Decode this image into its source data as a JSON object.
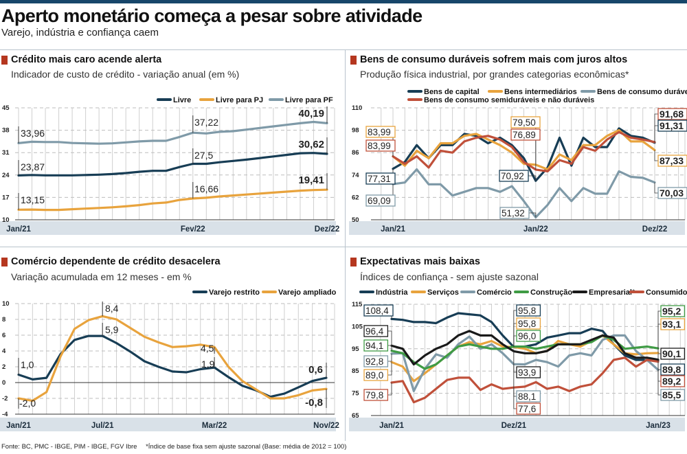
{
  "header": {
    "title": "Aperto monetário começa a pesar sobre atividade",
    "subtitle": "Varejo, indústria e confiança caem"
  },
  "footer": {
    "sources": "Fonte: BC, PMC - IBGE, PIM - IBGE, FGV Ibre",
    "note": "*Índice de base fixa sem ajuste sazonal (Base: média de 2012 = 100)"
  },
  "colors": {
    "navy": "#173d55",
    "orange": "#e8a33d",
    "gray": "#7f9aa8",
    "red": "#c0503a",
    "green": "#3f9b44",
    "black": "#1a1a1a",
    "accent": "#b5371f",
    "axis_band": "#d9e1e8"
  },
  "chart_data": [
    {
      "type": "line",
      "title": "Crédito mais caro acende alerta",
      "subtitle": "Indicador de custo de crédito - variação anual (em %)",
      "x_tick_labels": [
        {
          "index": 0,
          "label": "Jan/21"
        },
        {
          "index": 13,
          "label": "Fev/22"
        },
        {
          "index": 23,
          "label": "Dez/22"
        }
      ],
      "ylim": [
        10,
        45
      ],
      "y_ticks": [
        10,
        17,
        24,
        31,
        38,
        45
      ],
      "grid": true,
      "legend": "top-right",
      "series": [
        {
          "name": "Livre",
          "color": "#173d55",
          "values": [
            23.87,
            24.0,
            23.9,
            23.9,
            23.9,
            24.0,
            24.1,
            24.3,
            24.6,
            25.0,
            25.3,
            25.3,
            26.5,
            27.5,
            27.5,
            28.0,
            28.4,
            28.8,
            29.3,
            29.8,
            30.3,
            30.8,
            30.9,
            30.62
          ]
        },
        {
          "name": "Livre para PJ",
          "color": "#e8a33d",
          "values": [
            13.15,
            13.2,
            13.1,
            13.1,
            13.3,
            13.5,
            13.7,
            13.9,
            14.2,
            14.6,
            15.1,
            15.4,
            16.2,
            16.66,
            16.9,
            17.3,
            17.6,
            17.9,
            18.2,
            18.5,
            18.8,
            19.1,
            19.3,
            19.41
          ]
        },
        {
          "name": "Livre para PF",
          "color": "#7f9aa8",
          "values": [
            33.96,
            34.4,
            34.3,
            34.3,
            34.0,
            33.9,
            33.8,
            33.9,
            34.2,
            34.5,
            34.7,
            34.7,
            35.9,
            37.22,
            37.0,
            37.5,
            37.7,
            38.2,
            38.7,
            39.2,
            39.7,
            40.2,
            40.6,
            40.19
          ]
        }
      ],
      "annotations": [
        {
          "text": "33,96",
          "series": 2,
          "index": 0
        },
        {
          "text": "23,87",
          "series": 0,
          "index": 0
        },
        {
          "text": "13,15",
          "series": 1,
          "index": 0
        },
        {
          "text": "37,22",
          "series": 2,
          "index": 13
        },
        {
          "text": "27,5",
          "series": 0,
          "index": 13
        },
        {
          "text": "16,66",
          "series": 1,
          "index": 13
        },
        {
          "text": "40,19",
          "series": 2,
          "index": 23
        },
        {
          "text": "30,62",
          "series": 0,
          "index": 23
        },
        {
          "text": "19,41",
          "series": 1,
          "index": 23
        }
      ]
    },
    {
      "type": "line",
      "title": "Bens de consumo duráveis sofrem mais com juros altos",
      "subtitle": "Produção física industrial, por grandes categorias econômicas*",
      "x_tick_labels": [
        {
          "index": 0,
          "label": "Jan/21"
        },
        {
          "index": 12,
          "label": "Jan/22"
        },
        {
          "index": 22,
          "label": "Dez/22"
        }
      ],
      "ylim": [
        50,
        110
      ],
      "y_ticks": [
        50,
        62,
        74,
        86,
        98,
        110
      ],
      "grid": true,
      "legend": "top",
      "series": [
        {
          "name": "Bens de capital",
          "color": "#173d55",
          "values": [
            77.31,
            81,
            90,
            83,
            90,
            90,
            96,
            95,
            91,
            94,
            90,
            83,
            70.92,
            78,
            94,
            79,
            94,
            89,
            89,
            99,
            95,
            94,
            91.31
          ]
        },
        {
          "name": "Bens intermediários",
          "color": "#e8a33d",
          "values": [
            83.99,
            79,
            87,
            83,
            91,
            91,
            95,
            96,
            93,
            90,
            86,
            80,
            79.5,
            77,
            85,
            82,
            90,
            90,
            95,
            98,
            92,
            92,
            87.33
          ]
        },
        {
          "name": "Bens de consumo duráveis",
          "color": "#7f9aa8",
          "values": [
            69.09,
            70,
            77,
            69,
            69,
            63,
            65,
            67,
            67,
            65,
            68,
            60,
            51.32,
            58,
            67,
            60,
            67,
            64,
            64,
            76,
            73,
            72.5,
            70.03
          ]
        },
        {
          "name": "Bens de consumo semiduráveis e não duráveis",
          "color": "#c0503a",
          "values": [
            83.99,
            80,
            84,
            78,
            87,
            86,
            92,
            94,
            95,
            93,
            89,
            81,
            76.89,
            76,
            82,
            80,
            89,
            87,
            93,
            97,
            94,
            93,
            91.68
          ]
        }
      ],
      "annotations": [
        {
          "text": "83,99",
          "series": 1,
          "index": 0
        },
        {
          "text": "83,99",
          "series": 3,
          "index": 0
        },
        {
          "text": "77,31",
          "series": 0,
          "index": 0
        },
        {
          "text": "69,09",
          "series": 2,
          "index": 0
        },
        {
          "text": "79,50",
          "series": 1,
          "index": 12
        },
        {
          "text": "76,89",
          "series": 3,
          "index": 12
        },
        {
          "text": "70,92",
          "series": 0,
          "index": 12
        },
        {
          "text": "51,32",
          "series": 2,
          "index": 12
        },
        {
          "text": "91,68",
          "series": 3,
          "index": 22
        },
        {
          "text": "91,31",
          "series": 0,
          "index": 22
        },
        {
          "text": "87,33",
          "series": 1,
          "index": 22
        },
        {
          "text": "70,03",
          "series": 2,
          "index": 22
        }
      ]
    },
    {
      "type": "line",
      "title": "Comércio dependente de crédito desacelera",
      "subtitle": "Variação acumulada em 12 meses - em %",
      "x_tick_labels": [
        {
          "index": 0,
          "label": "Jan/21"
        },
        {
          "index": 6,
          "label": "Jul/21"
        },
        {
          "index": 14,
          "label": "Mar/22"
        },
        {
          "index": 22,
          "label": "Nov/22"
        }
      ],
      "ylim": [
        -4,
        10
      ],
      "y_ticks": [
        -4,
        -2,
        0,
        2,
        4,
        6,
        8,
        10
      ],
      "grid": true,
      "legend": "top-right",
      "series": [
        {
          "name": "Varejo restrito",
          "color": "#173d55",
          "values": [
            1.0,
            0.4,
            0.6,
            3.6,
            5.4,
            5.9,
            5.9,
            5.0,
            3.9,
            2.7,
            2.0,
            1.4,
            1.3,
            1.7,
            1.9,
            0.7,
            -0.4,
            -1.0,
            -1.8,
            -1.4,
            -0.6,
            0.2,
            0.6
          ]
        },
        {
          "name": "Varejo ampliado",
          "color": "#e8a33d",
          "values": [
            -2.0,
            -2.3,
            -1.2,
            3.3,
            6.8,
            7.9,
            8.4,
            8.0,
            6.9,
            5.8,
            5.1,
            4.5,
            4.6,
            4.8,
            4.5,
            2.0,
            0.2,
            -0.9,
            -2.0,
            -2.0,
            -1.6,
            -1.0,
            -0.8
          ]
        }
      ],
      "annotations": [
        {
          "text": "1,0",
          "series": 0,
          "index": 0
        },
        {
          "text": "-2,0",
          "series": 1,
          "index": 0
        },
        {
          "text": "8,4",
          "series": 1,
          "index": 6
        },
        {
          "text": "5,9",
          "series": 0,
          "index": 6
        },
        {
          "text": "4,5",
          "series": 1,
          "index": 14
        },
        {
          "text": "1,9",
          "series": 0,
          "index": 14
        },
        {
          "text": "0,6",
          "series": 0,
          "index": 22
        },
        {
          "text": "-0,8",
          "series": 1,
          "index": 22
        }
      ]
    },
    {
      "type": "line",
      "title": "Expectativas mais baixas",
      "subtitle": "Índices de confiança - sem ajuste sazonal",
      "x_tick_labels": [
        {
          "index": 0,
          "label": "Jan/21"
        },
        {
          "index": 11,
          "label": "Dez/21"
        },
        {
          "index": 24,
          "label": "Jan/23"
        }
      ],
      "ylim": [
        65,
        115
      ],
      "y_ticks": [
        65,
        75,
        85,
        95,
        105,
        115
      ],
      "grid": true,
      "legend": "top",
      "series": [
        {
          "name": "Indústria",
          "color": "#173d55",
          "values": [
            108.4,
            108,
            107,
            107,
            106.5,
            109,
            111,
            110.5,
            110,
            107,
            101,
            95.8,
            96,
            97,
            100,
            101,
            102,
            102,
            104,
            103,
            97,
            92,
            90,
            90,
            89.8
          ]
        },
        {
          "name": "Serviços",
          "color": "#e8a33d",
          "values": [
            89.0,
            87,
            80.5,
            84,
            88,
            92,
            96,
            98,
            97,
            98.5,
            96,
            95.8,
            95,
            93,
            94,
            98.5,
            97,
            96,
            98.5,
            101,
            97,
            93,
            92.5,
            93,
            93.1
          ]
        },
        {
          "name": "Comércio",
          "color": "#7f9aa8",
          "values": [
            92.8,
            93,
            76,
            86,
            92.5,
            91,
            97,
            100.5,
            95,
            97,
            93,
            88.1,
            88,
            90,
            89,
            87,
            92,
            93,
            92,
            99,
            101,
            101,
            94,
            90,
            85.5
          ]
        },
        {
          "name": "Construção",
          "color": "#3f9b44",
          "values": [
            94.1,
            93,
            89,
            86,
            88,
            92,
            96,
            97,
            96,
            95,
            95,
            96.0,
            96,
            95,
            96,
            97,
            97,
            97,
            98,
            101,
            99,
            95,
            95.5,
            96,
            95.2
          ]
        },
        {
          "name": "Empresarial*",
          "color": "#1a1a1a",
          "values": [
            96.4,
            95,
            88,
            92,
            95,
            97,
            101,
            103,
            101,
            101,
            97,
            93.9,
            93,
            93,
            94,
            97,
            97,
            97,
            99,
            101,
            100,
            93,
            91,
            91,
            90.1
          ]
        },
        {
          "name": "Consumidor",
          "color": "#c0503a",
          "values": [
            79.8,
            80.5,
            71,
            73,
            77,
            81,
            82,
            82,
            76.5,
            79,
            77,
            77.6,
            78,
            80,
            77,
            78,
            76,
            78,
            79,
            84,
            90,
            91,
            87,
            90,
            89.2
          ]
        }
      ],
      "annotations": [
        {
          "text": "108,4",
          "series": 0,
          "index": 0
        },
        {
          "text": "96,4",
          "series": 4,
          "index": 0
        },
        {
          "text": "94,1",
          "series": 3,
          "index": 0
        },
        {
          "text": "92,8",
          "series": 2,
          "index": 0
        },
        {
          "text": "89,0",
          "series": 1,
          "index": 0
        },
        {
          "text": "79,8",
          "series": 5,
          "index": 0
        },
        {
          "text": "95,8",
          "series": 0,
          "index": 11
        },
        {
          "text": "95,8",
          "series": 1,
          "index": 11
        },
        {
          "text": "96,0",
          "series": 3,
          "index": 11
        },
        {
          "text": "93,9",
          "series": 4,
          "index": 11
        },
        {
          "text": "88,1",
          "series": 2,
          "index": 11
        },
        {
          "text": "77,6",
          "series": 5,
          "index": 11
        },
        {
          "text": "95,2",
          "series": 3,
          "index": 24
        },
        {
          "text": "93,1",
          "series": 1,
          "index": 24
        },
        {
          "text": "90,1",
          "series": 4,
          "index": 24
        },
        {
          "text": "89,8",
          "series": 0,
          "index": 24
        },
        {
          "text": "89,2",
          "series": 5,
          "index": 24
        },
        {
          "text": "85,5",
          "series": 2,
          "index": 24
        }
      ]
    }
  ]
}
